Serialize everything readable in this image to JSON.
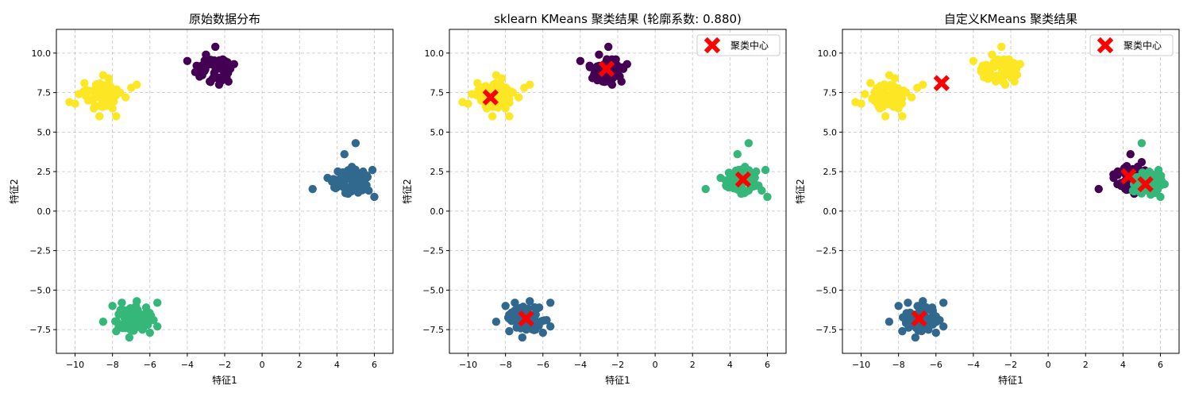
{
  "colors": {
    "purple": "#440154",
    "blue": "#31688e",
    "green": "#35b779",
    "yellow": "#fde725",
    "center": "#ff0000",
    "grid": "#b0b0b0"
  },
  "chart_data": [
    {
      "type": "scatter",
      "title": "原始数据分布",
      "xlabel": "特征1",
      "ylabel": "特征2",
      "xlim": [
        -11.0,
        7.0
      ],
      "ylim": [
        -9.0,
        11.5
      ],
      "xticks": [
        -10,
        -8,
        -6,
        -4,
        -2,
        0,
        2,
        4,
        6
      ],
      "yticks": [
        -7.5,
        -5.0,
        -2.5,
        0.0,
        2.5,
        5.0,
        7.5,
        10.0
      ],
      "grid": true,
      "show_legend": false,
      "clusters": [
        {
          "center": [
            -8.6,
            7.3
          ],
          "points": [
            [
              -10.3,
              6.9
            ],
            [
              -10.0,
              6.8
            ],
            [
              -9.8,
              7.4
            ],
            [
              -9.5,
              8.1
            ],
            [
              -9.3,
              7.0
            ],
            [
              -9.0,
              6.5
            ],
            [
              -8.7,
              6.0
            ],
            [
              -8.5,
              8.6
            ],
            [
              -8.2,
              8.4
            ],
            [
              -8.0,
              6.5
            ],
            [
              -7.8,
              6.0
            ],
            [
              -7.6,
              7.5
            ],
            [
              -7.3,
              7.2
            ],
            [
              -7.0,
              7.8
            ],
            [
              -6.7,
              8.0
            ],
            [
              -8.8,
              7.8
            ],
            [
              -9.1,
              7.6
            ],
            [
              -8.4,
              7.1
            ]
          ],
          "color_key": "yellow"
        },
        {
          "center": [
            -2.6,
            8.9
          ],
          "points": [
            [
              -4.0,
              9.5
            ],
            [
              -3.5,
              9.2
            ],
            [
              -3.2,
              8.6
            ],
            [
              -3.0,
              9.9
            ],
            [
              -2.8,
              8.2
            ],
            [
              -2.5,
              10.4
            ],
            [
              -2.3,
              8.0
            ],
            [
              -2.1,
              9.6
            ],
            [
              -1.9,
              8.5
            ],
            [
              -1.7,
              9.0
            ],
            [
              -1.5,
              9.3
            ],
            [
              -1.8,
              8.2
            ],
            [
              -2.7,
              9.3
            ],
            [
              -3.1,
              8.9
            ]
          ],
          "color_key": "purple"
        },
        {
          "center": [
            4.7,
            1.9
          ],
          "points": [
            [
              2.7,
              1.4
            ],
            [
              3.5,
              2.1
            ],
            [
              3.9,
              1.6
            ],
            [
              4.2,
              2.4
            ],
            [
              4.4,
              3.6
            ],
            [
              4.6,
              1.1
            ],
            [
              4.8,
              2.8
            ],
            [
              5.0,
              4.3
            ],
            [
              5.2,
              1.7
            ],
            [
              5.4,
              2.5
            ],
            [
              5.7,
              1.3
            ],
            [
              5.9,
              2.6
            ],
            [
              6.0,
              0.9
            ],
            [
              4.9,
              2.0
            ]
          ],
          "color_key": "blue"
        },
        {
          "center": [
            -6.9,
            -6.8
          ],
          "points": [
            [
              -8.5,
              -7.0
            ],
            [
              -8.0,
              -6.0
            ],
            [
              -7.8,
              -7.6
            ],
            [
              -7.5,
              -5.8
            ],
            [
              -7.3,
              -7.2
            ],
            [
              -7.1,
              -8.0
            ],
            [
              -6.9,
              -6.4
            ],
            [
              -6.7,
              -5.7
            ],
            [
              -6.4,
              -7.5
            ],
            [
              -6.2,
              -6.1
            ],
            [
              -6.0,
              -7.7
            ],
            [
              -5.8,
              -6.9
            ],
            [
              -5.6,
              -7.3
            ],
            [
              -5.6,
              -5.8
            ]
          ],
          "color_key": "green"
        }
      ]
    },
    {
      "type": "scatter",
      "title": "sklearn KMeans 聚类结果 (轮廓系数: 0.880)",
      "xlabel": "特征1",
      "ylabel": "特征2",
      "xlim": [
        -11.0,
        7.0
      ],
      "ylim": [
        -9.0,
        11.5
      ],
      "xticks": [
        -10,
        -8,
        -6,
        -4,
        -2,
        0,
        2,
        4,
        6
      ],
      "yticks": [
        -7.5,
        -5.0,
        -2.5,
        0.0,
        2.5,
        5.0,
        7.5,
        10.0
      ],
      "grid": true,
      "show_legend": true,
      "legend_label": "聚类中心",
      "legend_position": "top-right",
      "centers": [
        [
          -8.8,
          7.2
        ],
        [
          -2.6,
          9.0
        ],
        [
          4.7,
          2.0
        ],
        [
          -6.9,
          -6.8
        ]
      ],
      "clusters": [
        {
          "center": [
            -8.6,
            7.3
          ],
          "points": [
            [
              -10.3,
              6.9
            ],
            [
              -10.0,
              6.8
            ],
            [
              -9.8,
              7.4
            ],
            [
              -9.5,
              8.1
            ],
            [
              -9.3,
              7.0
            ],
            [
              -9.0,
              6.5
            ],
            [
              -8.7,
              6.0
            ],
            [
              -8.5,
              8.6
            ],
            [
              -8.2,
              8.4
            ],
            [
              -8.0,
              6.5
            ],
            [
              -7.8,
              6.0
            ],
            [
              -7.6,
              7.5
            ],
            [
              -7.3,
              7.2
            ],
            [
              -7.0,
              7.8
            ],
            [
              -6.7,
              8.0
            ],
            [
              -8.8,
              7.8
            ],
            [
              -9.1,
              7.6
            ],
            [
              -8.4,
              7.1
            ]
          ],
          "color_key": "yellow"
        },
        {
          "center": [
            -2.6,
            8.9
          ],
          "points": [
            [
              -4.0,
              9.5
            ],
            [
              -3.5,
              9.2
            ],
            [
              -3.2,
              8.6
            ],
            [
              -3.0,
              9.9
            ],
            [
              -2.8,
              8.2
            ],
            [
              -2.5,
              10.4
            ],
            [
              -2.3,
              8.0
            ],
            [
              -2.1,
              9.6
            ],
            [
              -1.9,
              8.5
            ],
            [
              -1.7,
              9.0
            ],
            [
              -1.5,
              9.3
            ],
            [
              -1.8,
              8.2
            ],
            [
              -2.7,
              9.3
            ],
            [
              -3.1,
              8.9
            ]
          ],
          "color_key": "purple"
        },
        {
          "center": [
            4.7,
            1.9
          ],
          "points": [
            [
              2.7,
              1.4
            ],
            [
              3.5,
              2.1
            ],
            [
              3.9,
              1.6
            ],
            [
              4.2,
              2.4
            ],
            [
              4.4,
              3.6
            ],
            [
              4.6,
              1.1
            ],
            [
              4.8,
              2.8
            ],
            [
              5.0,
              4.3
            ],
            [
              5.2,
              1.7
            ],
            [
              5.4,
              2.5
            ],
            [
              5.7,
              1.3
            ],
            [
              5.9,
              2.6
            ],
            [
              6.0,
              0.9
            ],
            [
              4.9,
              2.0
            ]
          ],
          "color_key": "green"
        },
        {
          "center": [
            -6.9,
            -6.8
          ],
          "points": [
            [
              -8.5,
              -7.0
            ],
            [
              -8.0,
              -6.0
            ],
            [
              -7.8,
              -7.6
            ],
            [
              -7.5,
              -5.8
            ],
            [
              -7.3,
              -7.2
            ],
            [
              -7.1,
              -8.0
            ],
            [
              -6.9,
              -6.4
            ],
            [
              -6.7,
              -5.7
            ],
            [
              -6.4,
              -7.5
            ],
            [
              -6.2,
              -6.1
            ],
            [
              -6.0,
              -7.7
            ],
            [
              -5.8,
              -6.9
            ],
            [
              -5.6,
              -7.3
            ],
            [
              -5.6,
              -5.8
            ]
          ],
          "color_key": "blue"
        }
      ]
    },
    {
      "type": "scatter",
      "title": "自定义KMeans 聚类结果",
      "xlabel": "特征1",
      "ylabel": "特征2",
      "xlim": [
        -11.0,
        7.0
      ],
      "ylim": [
        -9.0,
        11.5
      ],
      "xticks": [
        -10,
        -8,
        -6,
        -4,
        -2,
        0,
        2,
        4,
        6
      ],
      "yticks": [
        -7.5,
        -5.0,
        -2.5,
        0.0,
        2.5,
        5.0,
        7.5,
        10.0
      ],
      "grid": true,
      "show_legend": true,
      "legend_label": "聚类中心",
      "legend_position": "top-right",
      "centers": [
        [
          -5.7,
          8.1
        ],
        [
          4.3,
          2.2
        ],
        [
          5.2,
          1.7
        ],
        [
          -6.9,
          -6.8
        ]
      ],
      "clusters": [
        {
          "center": [
            -8.6,
            7.3
          ],
          "points": [
            [
              -10.3,
              6.9
            ],
            [
              -10.0,
              6.8
            ],
            [
              -9.8,
              7.4
            ],
            [
              -9.5,
              8.1
            ],
            [
              -9.3,
              7.0
            ],
            [
              -9.0,
              6.5
            ],
            [
              -8.7,
              6.0
            ],
            [
              -8.5,
              8.6
            ],
            [
              -8.2,
              8.4
            ],
            [
              -8.0,
              6.5
            ],
            [
              -7.8,
              6.0
            ],
            [
              -7.6,
              7.5
            ],
            [
              -7.3,
              7.2
            ],
            [
              -7.0,
              7.8
            ],
            [
              -6.7,
              8.0
            ],
            [
              -8.8,
              7.8
            ],
            [
              -9.1,
              7.6
            ],
            [
              -8.4,
              7.1
            ]
          ],
          "color_key": "yellow"
        },
        {
          "center": [
            -2.6,
            8.9
          ],
          "points": [
            [
              -4.0,
              9.5
            ],
            [
              -3.5,
              9.2
            ],
            [
              -3.2,
              8.6
            ],
            [
              -3.0,
              9.9
            ],
            [
              -2.8,
              8.2
            ],
            [
              -2.5,
              10.4
            ],
            [
              -2.3,
              8.0
            ],
            [
              -2.1,
              9.6
            ],
            [
              -1.9,
              8.5
            ],
            [
              -1.7,
              9.0
            ],
            [
              -1.5,
              9.3
            ],
            [
              -1.8,
              8.2
            ],
            [
              -2.7,
              9.3
            ],
            [
              -3.1,
              8.9
            ]
          ],
          "color_key": "yellow"
        },
        {
          "center": [
            4.4,
            2.1
          ],
          "points": [
            [
              2.7,
              1.4
            ],
            [
              3.5,
              2.1
            ],
            [
              3.9,
              1.6
            ],
            [
              4.2,
              2.4
            ],
            [
              4.4,
              3.6
            ],
            [
              4.6,
              1.1
            ],
            [
              4.8,
              2.8
            ],
            [
              5.0,
              3.1
            ],
            [
              4.1,
              1.9
            ]
          ],
          "color_key": "purple"
        },
        {
          "center": [
            5.3,
            1.8
          ],
          "points": [
            [
              5.0,
              4.3
            ],
            [
              5.2,
              1.7
            ],
            [
              5.4,
              2.5
            ],
            [
              5.7,
              1.3
            ],
            [
              5.9,
              2.6
            ],
            [
              6.0,
              0.9
            ],
            [
              5.5,
              2.0
            ],
            [
              4.9,
              1.2
            ]
          ],
          "color_key": "green"
        },
        {
          "center": [
            -6.9,
            -6.8
          ],
          "points": [
            [
              -8.5,
              -7.0
            ],
            [
              -8.0,
              -6.0
            ],
            [
              -7.8,
              -7.6
            ],
            [
              -7.5,
              -5.8
            ],
            [
              -7.3,
              -7.2
            ],
            [
              -7.1,
              -8.0
            ],
            [
              -6.9,
              -6.4
            ],
            [
              -6.7,
              -5.7
            ],
            [
              -6.4,
              -7.5
            ],
            [
              -6.2,
              -6.1
            ],
            [
              -6.0,
              -7.7
            ],
            [
              -5.8,
              -6.9
            ],
            [
              -5.6,
              -7.3
            ],
            [
              -5.6,
              -5.8
            ]
          ],
          "color_key": "blue"
        }
      ]
    }
  ]
}
